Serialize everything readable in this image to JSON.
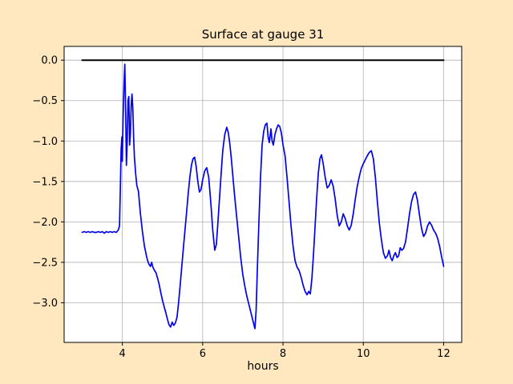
{
  "figure": {
    "title": "Surface at gauge 31",
    "xlabel": "hours",
    "background_color": "#ffe8c0",
    "plot_background": "#ffffff",
    "grid_color": "#b0b0b0",
    "frame_color": "#000000",
    "text_color": "#000000"
  },
  "chart_data": {
    "type": "line",
    "title": "Surface at gauge 31",
    "xlabel": "hours",
    "ylabel": "",
    "xlim": [
      2.55,
      12.45
    ],
    "ylim": [
      -3.49,
      0.17
    ],
    "xticks": [
      4,
      6,
      8,
      10,
      12
    ],
    "yticks": [
      0.0,
      -0.5,
      -1.0,
      -1.5,
      -2.0,
      -2.5,
      -3.0
    ],
    "grid": true,
    "legend": "none",
    "series": [
      {
        "name": "zero-reference-line",
        "color": "#000000",
        "width": 2,
        "points": [
          [
            3.0,
            0.0
          ],
          [
            12.0,
            0.0
          ]
        ]
      },
      {
        "name": "surface-elevation",
        "color": "#0000ee",
        "width": 1.7,
        "points": [
          [
            3.0,
            -2.13
          ],
          [
            3.05,
            -2.12
          ],
          [
            3.1,
            -2.13
          ],
          [
            3.15,
            -2.12
          ],
          [
            3.2,
            -2.13
          ],
          [
            3.25,
            -2.12
          ],
          [
            3.3,
            -2.13
          ],
          [
            3.35,
            -2.13
          ],
          [
            3.4,
            -2.12
          ],
          [
            3.45,
            -2.13
          ],
          [
            3.5,
            -2.12
          ],
          [
            3.55,
            -2.14
          ],
          [
            3.6,
            -2.12
          ],
          [
            3.65,
            -2.13
          ],
          [
            3.7,
            -2.12
          ],
          [
            3.75,
            -2.13
          ],
          [
            3.8,
            -2.12
          ],
          [
            3.85,
            -2.13
          ],
          [
            3.9,
            -2.1
          ],
          [
            3.93,
            -2.05
          ],
          [
            3.95,
            -1.6
          ],
          [
            3.97,
            -1.1
          ],
          [
            3.99,
            -0.95
          ],
          [
            4.0,
            -1.25
          ],
          [
            4.02,
            -0.7
          ],
          [
            4.04,
            -0.3
          ],
          [
            4.06,
            -0.05
          ],
          [
            4.08,
            -0.6
          ],
          [
            4.1,
            -1.3
          ],
          [
            4.12,
            -1.0
          ],
          [
            4.14,
            -0.5
          ],
          [
            4.16,
            -0.45
          ],
          [
            4.18,
            -1.05
          ],
          [
            4.2,
            -0.9
          ],
          [
            4.22,
            -0.55
          ],
          [
            4.24,
            -0.42
          ],
          [
            4.26,
            -0.6
          ],
          [
            4.28,
            -0.95
          ],
          [
            4.3,
            -1.2
          ],
          [
            4.33,
            -1.4
          ],
          [
            4.36,
            -1.55
          ],
          [
            4.4,
            -1.62
          ],
          [
            4.45,
            -1.9
          ],
          [
            4.5,
            -2.12
          ],
          [
            4.55,
            -2.3
          ],
          [
            4.6,
            -2.42
          ],
          [
            4.63,
            -2.48
          ],
          [
            4.66,
            -2.52
          ],
          [
            4.7,
            -2.55
          ],
          [
            4.73,
            -2.5
          ],
          [
            4.76,
            -2.56
          ],
          [
            4.8,
            -2.6
          ],
          [
            4.84,
            -2.63
          ],
          [
            4.88,
            -2.7
          ],
          [
            4.92,
            -2.78
          ],
          [
            4.96,
            -2.88
          ],
          [
            5.0,
            -2.97
          ],
          [
            5.04,
            -3.05
          ],
          [
            5.08,
            -3.12
          ],
          [
            5.12,
            -3.2
          ],
          [
            5.16,
            -3.27
          ],
          [
            5.2,
            -3.3
          ],
          [
            5.24,
            -3.24
          ],
          [
            5.28,
            -3.28
          ],
          [
            5.32,
            -3.25
          ],
          [
            5.36,
            -3.18
          ],
          [
            5.4,
            -3.0
          ],
          [
            5.44,
            -2.78
          ],
          [
            5.48,
            -2.55
          ],
          [
            5.52,
            -2.32
          ],
          [
            5.56,
            -2.1
          ],
          [
            5.6,
            -1.88
          ],
          [
            5.64,
            -1.65
          ],
          [
            5.68,
            -1.45
          ],
          [
            5.72,
            -1.3
          ],
          [
            5.76,
            -1.22
          ],
          [
            5.8,
            -1.2
          ],
          [
            5.84,
            -1.32
          ],
          [
            5.88,
            -1.5
          ],
          [
            5.92,
            -1.63
          ],
          [
            5.96,
            -1.6
          ],
          [
            6.0,
            -1.48
          ],
          [
            6.05,
            -1.37
          ],
          [
            6.1,
            -1.33
          ],
          [
            6.15,
            -1.45
          ],
          [
            6.2,
            -1.75
          ],
          [
            6.25,
            -2.1
          ],
          [
            6.3,
            -2.35
          ],
          [
            6.34,
            -2.28
          ],
          [
            6.38,
            -2.0
          ],
          [
            6.42,
            -1.7
          ],
          [
            6.46,
            -1.4
          ],
          [
            6.5,
            -1.12
          ],
          [
            6.55,
            -0.92
          ],
          [
            6.6,
            -0.83
          ],
          [
            6.64,
            -0.9
          ],
          [
            6.68,
            -1.05
          ],
          [
            6.72,
            -1.25
          ],
          [
            6.76,
            -1.48
          ],
          [
            6.8,
            -1.7
          ],
          [
            6.85,
            -1.95
          ],
          [
            6.9,
            -2.2
          ],
          [
            6.95,
            -2.45
          ],
          [
            7.0,
            -2.65
          ],
          [
            7.05,
            -2.8
          ],
          [
            7.1,
            -2.92
          ],
          [
            7.15,
            -3.02
          ],
          [
            7.2,
            -3.12
          ],
          [
            7.25,
            -3.22
          ],
          [
            7.3,
            -3.32
          ],
          [
            7.33,
            -3.1
          ],
          [
            7.36,
            -2.6
          ],
          [
            7.4,
            -2.0
          ],
          [
            7.44,
            -1.45
          ],
          [
            7.48,
            -1.05
          ],
          [
            7.52,
            -0.88
          ],
          [
            7.56,
            -0.8
          ],
          [
            7.6,
            -0.78
          ],
          [
            7.63,
            -0.95
          ],
          [
            7.66,
            -1.02
          ],
          [
            7.7,
            -0.85
          ],
          [
            7.73,
            -1.0
          ],
          [
            7.76,
            -1.05
          ],
          [
            7.8,
            -0.92
          ],
          [
            7.84,
            -0.85
          ],
          [
            7.88,
            -0.8
          ],
          [
            7.92,
            -0.82
          ],
          [
            7.96,
            -0.9
          ],
          [
            8.0,
            -1.05
          ],
          [
            8.05,
            -1.18
          ],
          [
            8.1,
            -1.45
          ],
          [
            8.15,
            -1.75
          ],
          [
            8.2,
            -2.05
          ],
          [
            8.25,
            -2.3
          ],
          [
            8.3,
            -2.48
          ],
          [
            8.35,
            -2.56
          ],
          [
            8.4,
            -2.6
          ],
          [
            8.45,
            -2.68
          ],
          [
            8.5,
            -2.78
          ],
          [
            8.55,
            -2.86
          ],
          [
            8.6,
            -2.9
          ],
          [
            8.64,
            -2.86
          ],
          [
            8.68,
            -2.89
          ],
          [
            8.72,
            -2.7
          ],
          [
            8.76,
            -2.4
          ],
          [
            8.8,
            -2.05
          ],
          [
            8.84,
            -1.7
          ],
          [
            8.88,
            -1.4
          ],
          [
            8.92,
            -1.22
          ],
          [
            8.96,
            -1.17
          ],
          [
            9.0,
            -1.28
          ],
          [
            9.05,
            -1.45
          ],
          [
            9.1,
            -1.58
          ],
          [
            9.15,
            -1.55
          ],
          [
            9.2,
            -1.48
          ],
          [
            9.25,
            -1.56
          ],
          [
            9.3,
            -1.72
          ],
          [
            9.35,
            -1.92
          ],
          [
            9.4,
            -2.05
          ],
          [
            9.45,
            -2.0
          ],
          [
            9.5,
            -1.9
          ],
          [
            9.55,
            -1.96
          ],
          [
            9.6,
            -2.05
          ],
          [
            9.65,
            -2.1
          ],
          [
            9.7,
            -2.04
          ],
          [
            9.75,
            -1.9
          ],
          [
            9.8,
            -1.72
          ],
          [
            9.85,
            -1.56
          ],
          [
            9.9,
            -1.44
          ],
          [
            9.95,
            -1.34
          ],
          [
            10.0,
            -1.28
          ],
          [
            10.05,
            -1.23
          ],
          [
            10.1,
            -1.18
          ],
          [
            10.15,
            -1.14
          ],
          [
            10.2,
            -1.12
          ],
          [
            10.25,
            -1.22
          ],
          [
            10.3,
            -1.45
          ],
          [
            10.35,
            -1.75
          ],
          [
            10.4,
            -2.02
          ],
          [
            10.45,
            -2.22
          ],
          [
            10.5,
            -2.38
          ],
          [
            10.55,
            -2.45
          ],
          [
            10.6,
            -2.42
          ],
          [
            10.64,
            -2.35
          ],
          [
            10.68,
            -2.44
          ],
          [
            10.72,
            -2.48
          ],
          [
            10.76,
            -2.42
          ],
          [
            10.8,
            -2.38
          ],
          [
            10.84,
            -2.44
          ],
          [
            10.88,
            -2.42
          ],
          [
            10.92,
            -2.32
          ],
          [
            10.96,
            -2.35
          ],
          [
            11.0,
            -2.33
          ],
          [
            11.05,
            -2.25
          ],
          [
            11.1,
            -2.08
          ],
          [
            11.15,
            -1.9
          ],
          [
            11.2,
            -1.75
          ],
          [
            11.25,
            -1.66
          ],
          [
            11.3,
            -1.63
          ],
          [
            11.35,
            -1.74
          ],
          [
            11.4,
            -1.92
          ],
          [
            11.45,
            -2.08
          ],
          [
            11.5,
            -2.18
          ],
          [
            11.55,
            -2.14
          ],
          [
            11.6,
            -2.05
          ],
          [
            11.65,
            -2.0
          ],
          [
            11.7,
            -2.04
          ],
          [
            11.75,
            -2.1
          ],
          [
            11.8,
            -2.14
          ],
          [
            11.85,
            -2.2
          ],
          [
            11.9,
            -2.3
          ],
          [
            11.95,
            -2.43
          ],
          [
            12.0,
            -2.55
          ]
        ]
      }
    ]
  }
}
